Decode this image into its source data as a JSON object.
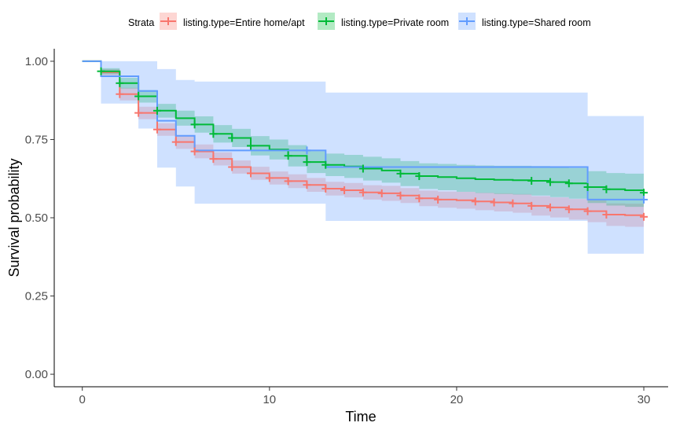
{
  "chart_data": {
    "type": "line",
    "subtype": "kaplan-meier survival curve with confidence bands and censor marks",
    "xlabel": "Time",
    "ylabel": "Survival probability",
    "xlim": [
      -1.5,
      31.3
    ],
    "ylim": [
      -0.04,
      1.04
    ],
    "x_ticks": [
      0,
      10,
      20,
      30
    ],
    "x_tick_labels": [
      "0",
      "10",
      "20",
      "30"
    ],
    "y_ticks": [
      0,
      0.25,
      0.5,
      0.75,
      1
    ],
    "y_tick_labels": [
      "0.00",
      "0.25",
      "0.50",
      "0.75",
      "1.00"
    ],
    "grid": false,
    "legend": {
      "position": "top",
      "title": "Strata",
      "labels": [
        "listing.type=Entire home/apt",
        "listing.type=Private room",
        "listing.type=Shared room"
      ]
    },
    "series": [
      {
        "name": "listing.type=Entire home/apt",
        "color": "#F8766D",
        "band_color": "#F8766D",
        "steps": [
          [
            0,
            1.0
          ],
          [
            1,
            0.965
          ],
          [
            2,
            0.895
          ],
          [
            3,
            0.835
          ],
          [
            4,
            0.782
          ],
          [
            5,
            0.742
          ],
          [
            6,
            0.712
          ],
          [
            7,
            0.688
          ],
          [
            8,
            0.662
          ],
          [
            9,
            0.642
          ],
          [
            10,
            0.627
          ],
          [
            11,
            0.617
          ],
          [
            12,
            0.605
          ],
          [
            13,
            0.593
          ],
          [
            14,
            0.588
          ],
          [
            15,
            0.581
          ],
          [
            16,
            0.578
          ],
          [
            17,
            0.571
          ],
          [
            18,
            0.562
          ],
          [
            19,
            0.558
          ],
          [
            20,
            0.556
          ],
          [
            21,
            0.552
          ],
          [
            22,
            0.549
          ],
          [
            23,
            0.546
          ],
          [
            24,
            0.538
          ],
          [
            25,
            0.533
          ],
          [
            26,
            0.527
          ],
          [
            27,
            0.521
          ],
          [
            28,
            0.51
          ],
          [
            29,
            0.508
          ],
          [
            30,
            0.503
          ]
        ],
        "ci_lower": [
          1.0,
          0.955,
          0.875,
          0.815,
          0.762,
          0.72,
          0.69,
          0.667,
          0.641,
          0.621,
          0.606,
          0.595,
          0.583,
          0.571,
          0.565,
          0.558,
          0.554,
          0.547,
          0.537,
          0.532,
          0.529,
          0.524,
          0.52,
          0.516,
          0.507,
          0.501,
          0.494,
          0.486,
          0.474,
          0.471,
          0.465
        ],
        "ci_upper": [
          1.0,
          0.975,
          0.915,
          0.855,
          0.802,
          0.764,
          0.734,
          0.709,
          0.683,
          0.663,
          0.648,
          0.639,
          0.627,
          0.615,
          0.611,
          0.604,
          0.602,
          0.595,
          0.587,
          0.584,
          0.583,
          0.58,
          0.578,
          0.576,
          0.569,
          0.565,
          0.56,
          0.556,
          0.546,
          0.545,
          0.541
        ],
        "censor_times": [
          2,
          3,
          4,
          5,
          6,
          7,
          8,
          9,
          10,
          11,
          12,
          13,
          14,
          15,
          16,
          17,
          18,
          19,
          21,
          22,
          23,
          24,
          25,
          26,
          27,
          28,
          30
        ]
      },
      {
        "name": "listing.type=Private room",
        "color": "#00BA38",
        "band_color": "#00BA38",
        "steps": [
          [
            0,
            1.0
          ],
          [
            1,
            0.968
          ],
          [
            2,
            0.93
          ],
          [
            3,
            0.888
          ],
          [
            4,
            0.842
          ],
          [
            5,
            0.818
          ],
          [
            6,
            0.798
          ],
          [
            7,
            0.768
          ],
          [
            8,
            0.755
          ],
          [
            9,
            0.73
          ],
          [
            10,
            0.718
          ],
          [
            11,
            0.698
          ],
          [
            12,
            0.678
          ],
          [
            13,
            0.669
          ],
          [
            14,
            0.664
          ],
          [
            15,
            0.657
          ],
          [
            16,
            0.651
          ],
          [
            17,
            0.641
          ],
          [
            18,
            0.633
          ],
          [
            19,
            0.63
          ],
          [
            20,
            0.626
          ],
          [
            21,
            0.623
          ],
          [
            22,
            0.621
          ],
          [
            23,
            0.62
          ],
          [
            24,
            0.618
          ],
          [
            25,
            0.614
          ],
          [
            26,
            0.61
          ],
          [
            27,
            0.598
          ],
          [
            28,
            0.591
          ],
          [
            29,
            0.588
          ],
          [
            30,
            0.58
          ]
        ],
        "ci_lower": [
          1.0,
          0.958,
          0.913,
          0.868,
          0.82,
          0.794,
          0.772,
          0.74,
          0.726,
          0.699,
          0.686,
          0.664,
          0.643,
          0.633,
          0.627,
          0.619,
          0.612,
          0.601,
          0.592,
          0.588,
          0.583,
          0.579,
          0.576,
          0.574,
          0.571,
          0.566,
          0.561,
          0.547,
          0.539,
          0.535,
          0.525
        ],
        "ci_upper": [
          1.0,
          0.978,
          0.947,
          0.908,
          0.864,
          0.842,
          0.824,
          0.796,
          0.784,
          0.761,
          0.75,
          0.732,
          0.713,
          0.705,
          0.701,
          0.695,
          0.69,
          0.681,
          0.674,
          0.672,
          0.669,
          0.667,
          0.666,
          0.666,
          0.665,
          0.662,
          0.659,
          0.649,
          0.643,
          0.641,
          0.635
        ],
        "censor_times": [
          1,
          2,
          3,
          4,
          6,
          7,
          8,
          9,
          11,
          12,
          13,
          15,
          17,
          18,
          24,
          25,
          26,
          27,
          28,
          30
        ]
      },
      {
        "name": "listing.type=Shared room",
        "color": "#619CFF",
        "band_color": "#619CFF",
        "steps": [
          [
            0,
            1.0
          ],
          [
            1,
            0.952
          ],
          [
            3,
            0.905
          ],
          [
            4,
            0.81
          ],
          [
            5,
            0.762
          ],
          [
            6,
            0.715
          ],
          [
            12,
            0.715
          ],
          [
            13,
            0.662
          ],
          [
            27,
            0.558
          ],
          [
            30,
            0.558
          ]
        ],
        "ci_lower": [
          1.0,
          0.865,
          0.785,
          0.66,
          0.6,
          0.545,
          0.545,
          0.49,
          0.385,
          0.385
        ],
        "ci_upper": [
          1.0,
          1.0,
          1.0,
          0.975,
          0.94,
          0.935,
          0.935,
          0.9,
          0.825,
          0.825
        ],
        "censor_times": [
          12,
          30
        ]
      }
    ]
  }
}
